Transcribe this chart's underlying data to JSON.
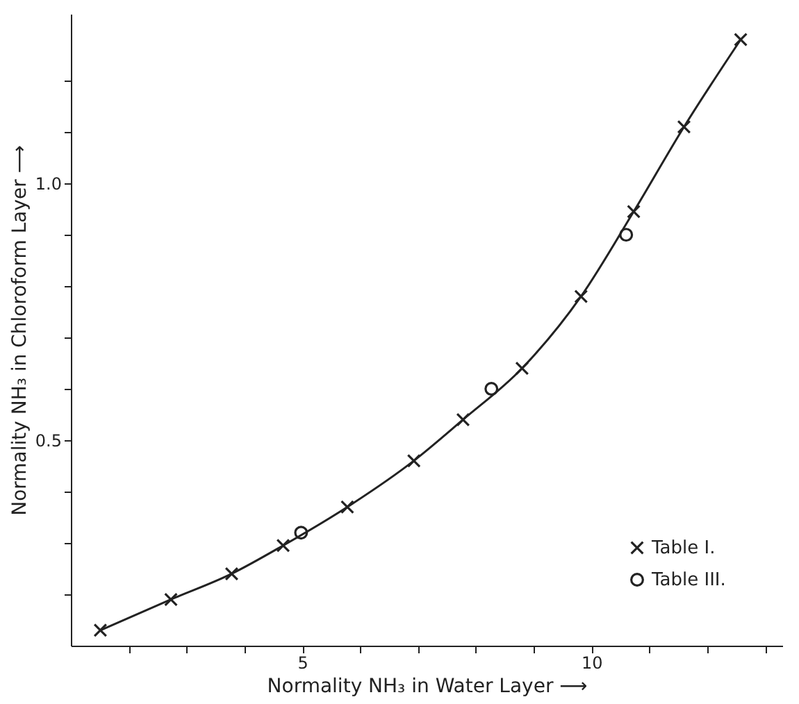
{
  "chart_data": {
    "type": "line",
    "xlabel": "Normality NH₃ in Water Layer ⟶",
    "ylabel": "Normality NH₃ in Chloroform Layer ⟶",
    "xlim": [
      1,
      13.3
    ],
    "ylim": [
      0.1,
      1.33
    ],
    "xticks": [
      {
        "value": 2,
        "label": null
      },
      {
        "value": 3,
        "label": null
      },
      {
        "value": 4,
        "label": null
      },
      5,
      {
        "value": 6,
        "label": null
      },
      {
        "value": 7,
        "label": null
      },
      {
        "value": 8,
        "label": null
      },
      {
        "value": 9,
        "label": null
      },
      10,
      {
        "value": 11,
        "label": null
      },
      {
        "value": 12,
        "label": null
      },
      {
        "value": 13,
        "label": null
      }
    ],
    "yticks": [
      {
        "value": 0.2,
        "label": null
      },
      {
        "value": 0.3,
        "label": null
      },
      {
        "value": 0.4,
        "label": null
      },
      {
        "value": 0.5,
        "label": "0.5"
      },
      {
        "value": 0.6,
        "label": null
      },
      {
        "value": 0.7,
        "label": null
      },
      {
        "value": 0.8,
        "label": null
      },
      {
        "value": 0.9,
        "label": null
      },
      {
        "value": 1.0,
        "label": "1.0"
      },
      {
        "value": 1.1,
        "label": null
      },
      {
        "value": 1.2,
        "label": null
      }
    ],
    "grid": false,
    "legend": "bottom right",
    "series": [
      {
        "name": "Table I.",
        "marker": "cross",
        "color": "#222222",
        "x": [
          1.51,
          2.73,
          3.78,
          4.67,
          5.78,
          6.93,
          7.78,
          8.8,
          9.82,
          10.73,
          11.6,
          12.58
        ],
        "values": [
          0.13,
          0.19,
          0.24,
          0.295,
          0.37,
          0.46,
          0.54,
          0.64,
          0.78,
          0.945,
          1.11,
          1.28
        ]
      },
      {
        "name": "Table III.",
        "type": "scatter",
        "marker": "circle",
        "color": "#222222",
        "x": [
          4.98,
          8.27,
          10.6
        ],
        "values": [
          0.32,
          0.6,
          0.9
        ]
      }
    ]
  }
}
